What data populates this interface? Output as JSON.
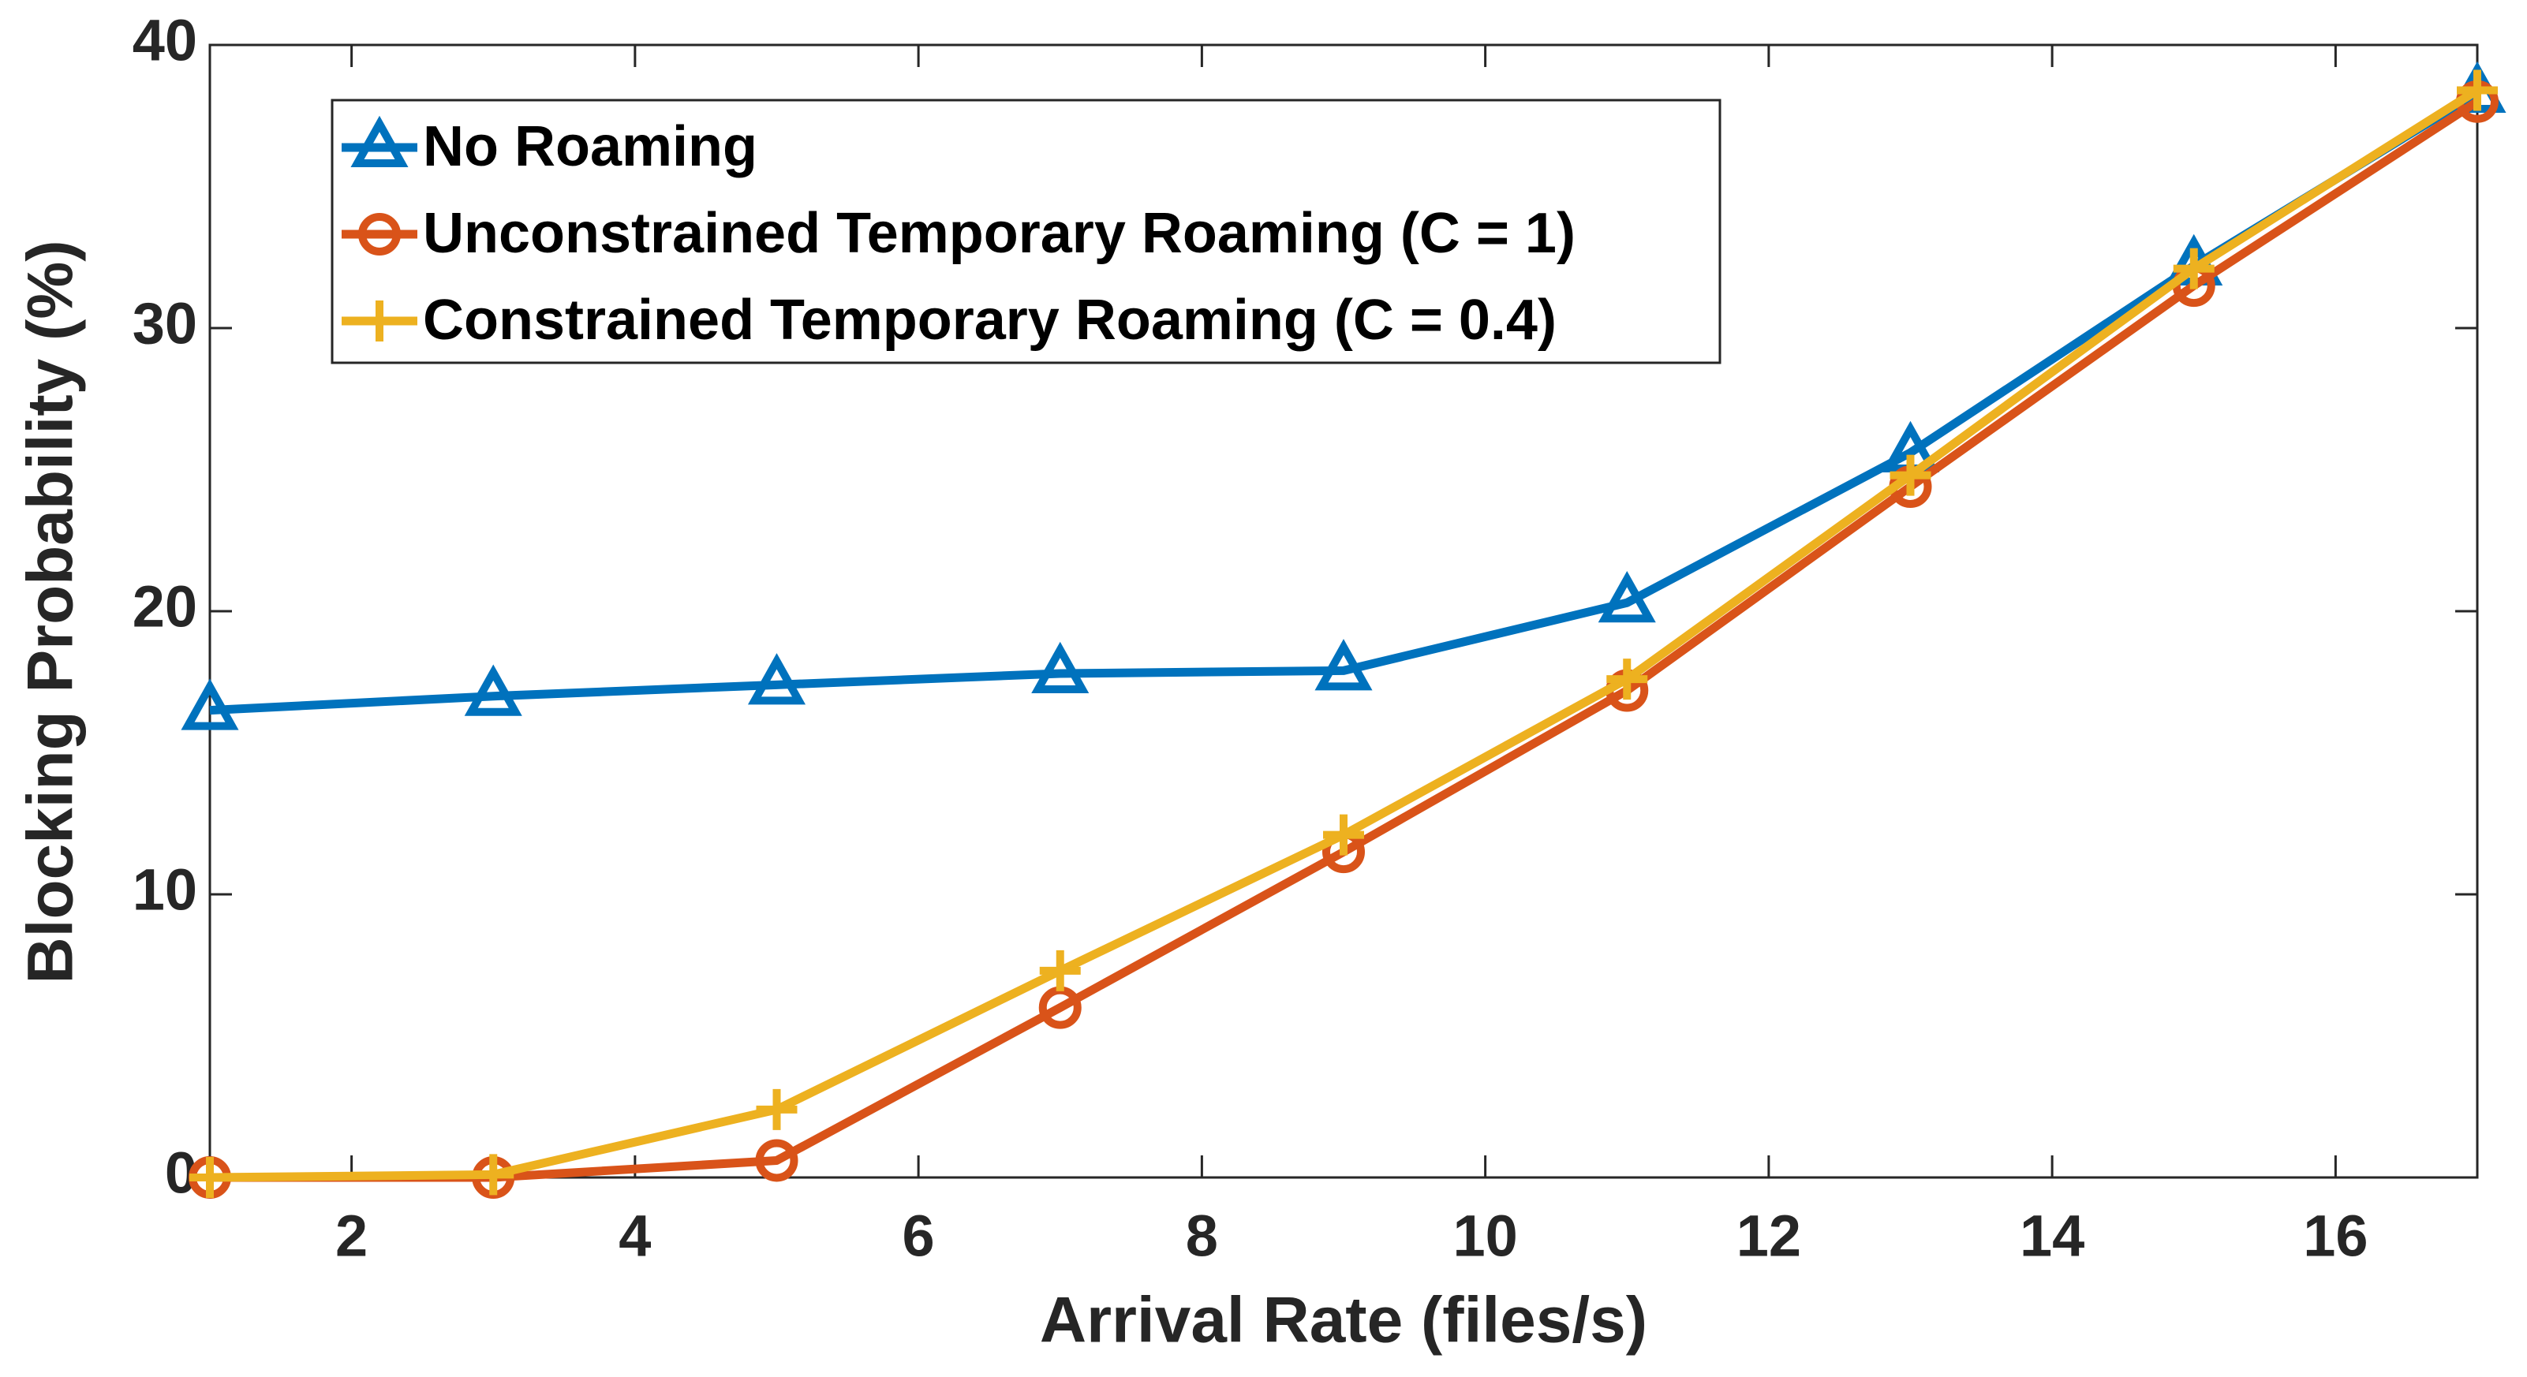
{
  "chart_data": {
    "type": "line",
    "x_label": "Arrival Rate (files/s)",
    "y_label": "Blocking Probability (%)",
    "x": [
      1,
      3,
      5,
      7,
      9,
      11,
      13,
      15,
      17
    ],
    "series": [
      {
        "name": "No Roaming",
        "color": "#0072bd",
        "marker": "triangle",
        "values": [
          16.5,
          17.0,
          17.4,
          17.8,
          17.9,
          20.3,
          25.6,
          32.2,
          38.3
        ]
      },
      {
        "name": "Unconstrained Temporary Roaming (C = 1)",
        "color": "#d95319",
        "marker": "circle",
        "values": [
          0,
          0,
          0.6,
          6.0,
          11.5,
          17.2,
          24.4,
          31.5,
          38.0
        ]
      },
      {
        "name": "Constrained Temporary Roaming (C = 0.4)",
        "color": "#edb120",
        "marker": "plus",
        "values": [
          0,
          0.1,
          2.4,
          7.3,
          12.1,
          17.6,
          24.8,
          32.1,
          38.4
        ]
      }
    ],
    "xlim": [
      1,
      17
    ],
    "xticks": [
      2,
      4,
      6,
      8,
      10,
      12,
      14,
      16
    ],
    "ylim": [
      0,
      40
    ],
    "yticks": [
      0,
      10,
      20,
      30,
      40
    ],
    "grid": false,
    "legend": "upper left"
  }
}
